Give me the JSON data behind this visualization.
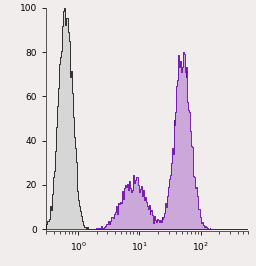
{
  "xlim": [
    0.3,
    600
  ],
  "ylim": [
    -1,
    100
  ],
  "yticks": [
    0,
    20,
    40,
    60,
    80,
    100
  ],
  "bg_color": "#f2eded",
  "gray_fill": "#d6d6d6",
  "gray_edge": "#111111",
  "purple_fill": "#c8a0d8",
  "purple_edge": "#6600aa",
  "figsize": [
    2.56,
    2.66
  ],
  "dpi": 100,
  "gray_peak_x": 0.62,
  "gray_peak_scale": 0.11,
  "gray_peak_height": 100,
  "purple_p1_x": 8.0,
  "purple_p1_scale": 0.2,
  "purple_p1_height": 28,
  "purple_p2_x": 50,
  "purple_p2_scale": 0.13,
  "purple_p2_height": 80
}
